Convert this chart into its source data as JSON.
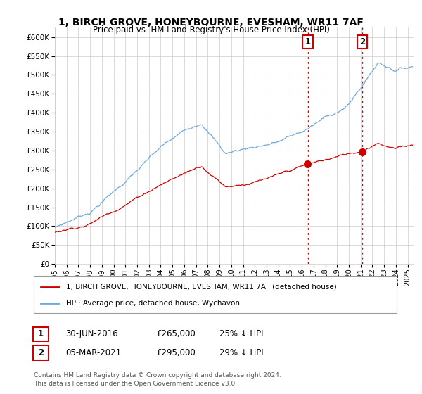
{
  "title": "1, BIRCH GROVE, HONEYBOURNE, EVESHAM, WR11 7AF",
  "subtitle": "Price paid vs. HM Land Registry's House Price Index (HPI)",
  "yticks": [
    0,
    50000,
    100000,
    150000,
    200000,
    250000,
    300000,
    350000,
    400000,
    450000,
    500000,
    550000,
    600000
  ],
  "ylim": [
    0,
    625000
  ],
  "xlim_start": 1995.0,
  "xlim_end": 2025.5,
  "xticks": [
    1995,
    1996,
    1997,
    1998,
    1999,
    2000,
    2001,
    2002,
    2003,
    2004,
    2005,
    2006,
    2007,
    2008,
    2009,
    2010,
    2011,
    2012,
    2013,
    2014,
    2015,
    2016,
    2017,
    2018,
    2019,
    2020,
    2021,
    2022,
    2023,
    2024,
    2025
  ],
  "hpi_color": "#6fa8dc",
  "price_color": "#cc0000",
  "vline_color": "#cc0000",
  "sale1_x": 2016.5,
  "sale1_y": 265000,
  "sale1_label": "1",
  "sale1_date": "30-JUN-2016",
  "sale1_price": "£265,000",
  "sale1_hpi": "25% ↓ HPI",
  "sale2_x": 2021.16,
  "sale2_y": 295000,
  "sale2_label": "2",
  "sale2_date": "05-MAR-2021",
  "sale2_price": "£295,000",
  "sale2_hpi": "29% ↓ HPI",
  "legend_line1": "1, BIRCH GROVE, HONEYBOURNE, EVESHAM, WR11 7AF (detached house)",
  "legend_line2": "HPI: Average price, detached house, Wychavon",
  "footnote1": "Contains HM Land Registry data © Crown copyright and database right 2024.",
  "footnote2": "This data is licensed under the Open Government Licence v3.0.",
  "bg_color": "#ffffff",
  "grid_color": "#cccccc",
  "plot_bg": "#ffffff"
}
